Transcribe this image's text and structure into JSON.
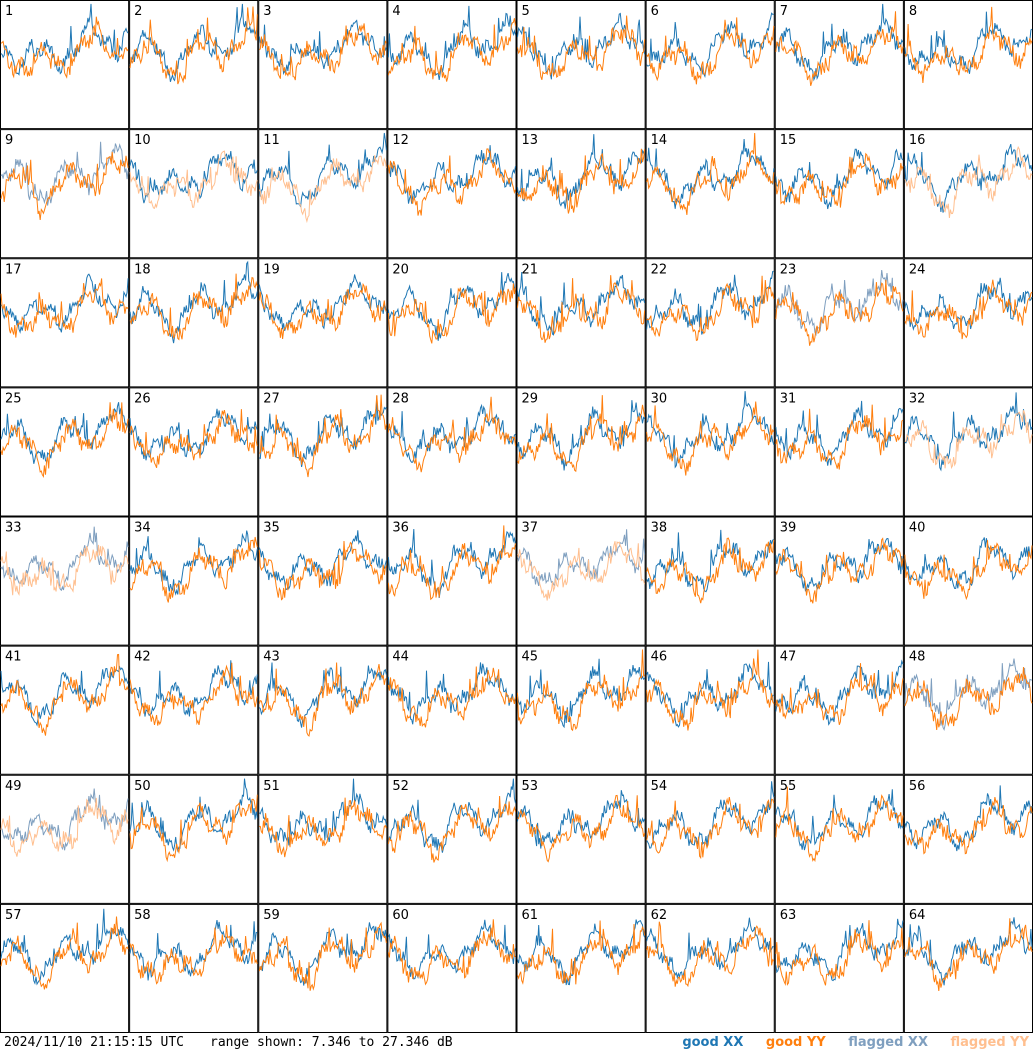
{
  "footer": {
    "timestamp": "2024/11/10 21:15:15 UTC",
    "range": "range shown: 7.346 to 27.346 dB"
  },
  "legend": [
    {
      "label": "good XX",
      "color": "#1f77b4"
    },
    {
      "label": "good YY",
      "color": "#ff7f0e"
    },
    {
      "label": "flagged XX",
      "color": "#7f9fbf"
    },
    {
      "label": "flagged YY",
      "color": "#ffbf8f"
    }
  ],
  "chart_data": {
    "type": "line",
    "grid": {
      "rows": 8,
      "cols": 8
    },
    "ylim": [
      7.346,
      27.346
    ],
    "units": "dB",
    "panels": [
      {
        "id": "1",
        "xx": "good",
        "yy": "good"
      },
      {
        "id": "2",
        "xx": "good",
        "yy": "good"
      },
      {
        "id": "3",
        "xx": "good",
        "yy": "good"
      },
      {
        "id": "4",
        "xx": "good",
        "yy": "good"
      },
      {
        "id": "5",
        "xx": "good",
        "yy": "good"
      },
      {
        "id": "6",
        "xx": "good",
        "yy": "good"
      },
      {
        "id": "7",
        "xx": "good",
        "yy": "good"
      },
      {
        "id": "8",
        "xx": "good",
        "yy": "good"
      },
      {
        "id": "9",
        "xx": "flagged",
        "yy": "good"
      },
      {
        "id": "10",
        "xx": "good",
        "yy": "flagged"
      },
      {
        "id": "11",
        "xx": "good",
        "yy": "flagged"
      },
      {
        "id": "12",
        "xx": "good",
        "yy": "good"
      },
      {
        "id": "13",
        "xx": "good",
        "yy": "good"
      },
      {
        "id": "14",
        "xx": "good",
        "yy": "good"
      },
      {
        "id": "15",
        "xx": "good",
        "yy": "good"
      },
      {
        "id": "16",
        "xx": "good",
        "yy": "flagged"
      },
      {
        "id": "17",
        "xx": "good",
        "yy": "good"
      },
      {
        "id": "18",
        "xx": "good",
        "yy": "good"
      },
      {
        "id": "19",
        "xx": "good",
        "yy": "good"
      },
      {
        "id": "20",
        "xx": "good",
        "yy": "good"
      },
      {
        "id": "21",
        "xx": "good",
        "yy": "good"
      },
      {
        "id": "22",
        "xx": "good",
        "yy": "good"
      },
      {
        "id": "23",
        "xx": "flagged",
        "yy": "good"
      },
      {
        "id": "24",
        "xx": "good",
        "yy": "good"
      },
      {
        "id": "25",
        "xx": "good",
        "yy": "good"
      },
      {
        "id": "26",
        "xx": "good",
        "yy": "good"
      },
      {
        "id": "27",
        "xx": "good",
        "yy": "good"
      },
      {
        "id": "28",
        "xx": "good",
        "yy": "good"
      },
      {
        "id": "29",
        "xx": "good",
        "yy": "good"
      },
      {
        "id": "30",
        "xx": "good",
        "yy": "good"
      },
      {
        "id": "31",
        "xx": "good",
        "yy": "good"
      },
      {
        "id": "32",
        "xx": "good",
        "yy": "flagged"
      },
      {
        "id": "33",
        "xx": "flagged",
        "yy": "flagged"
      },
      {
        "id": "34",
        "xx": "good",
        "yy": "good"
      },
      {
        "id": "35",
        "xx": "good",
        "yy": "good"
      },
      {
        "id": "36",
        "xx": "good",
        "yy": "good"
      },
      {
        "id": "37",
        "xx": "flagged",
        "yy": "flagged"
      },
      {
        "id": "38",
        "xx": "good",
        "yy": "good"
      },
      {
        "id": "39",
        "xx": "good",
        "yy": "good"
      },
      {
        "id": "40",
        "xx": "good",
        "yy": "good"
      },
      {
        "id": "41",
        "xx": "good",
        "yy": "good"
      },
      {
        "id": "42",
        "xx": "good",
        "yy": "good"
      },
      {
        "id": "43",
        "xx": "good",
        "yy": "good"
      },
      {
        "id": "44",
        "xx": "good",
        "yy": "good"
      },
      {
        "id": "45",
        "xx": "good",
        "yy": "good"
      },
      {
        "id": "46",
        "xx": "good",
        "yy": "good"
      },
      {
        "id": "47",
        "xx": "good",
        "yy": "good"
      },
      {
        "id": "48",
        "xx": "flagged",
        "yy": "good"
      },
      {
        "id": "49",
        "xx": "flagged",
        "yy": "flagged"
      },
      {
        "id": "50",
        "xx": "good",
        "yy": "good"
      },
      {
        "id": "51",
        "xx": "good",
        "yy": "good"
      },
      {
        "id": "52",
        "xx": "good",
        "yy": "good"
      },
      {
        "id": "53",
        "xx": "good",
        "yy": "good"
      },
      {
        "id": "54",
        "xx": "good",
        "yy": "good"
      },
      {
        "id": "55",
        "xx": "good",
        "yy": "good"
      },
      {
        "id": "56",
        "xx": "good",
        "yy": "good"
      },
      {
        "id": "57",
        "xx": "good",
        "yy": "good"
      },
      {
        "id": "58",
        "xx": "good",
        "yy": "good"
      },
      {
        "id": "59",
        "xx": "good",
        "yy": "good"
      },
      {
        "id": "60",
        "xx": "good",
        "yy": "good"
      },
      {
        "id": "61",
        "xx": "good",
        "yy": "good"
      },
      {
        "id": "62",
        "xx": "good",
        "yy": "good"
      },
      {
        "id": "63",
        "xx": "good",
        "yy": "good"
      },
      {
        "id": "64",
        "xx": "good",
        "yy": "good"
      }
    ]
  }
}
